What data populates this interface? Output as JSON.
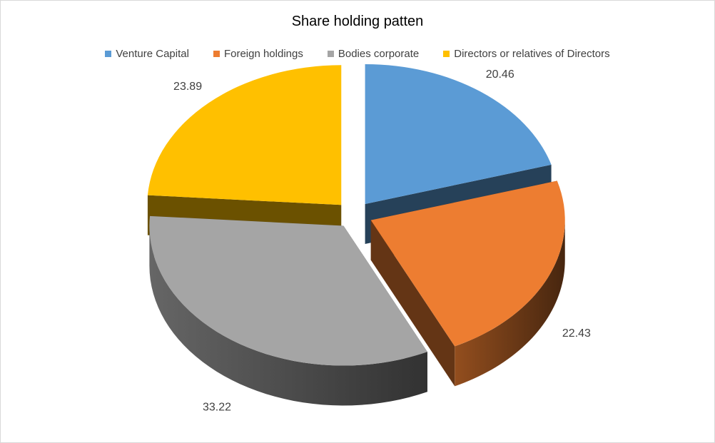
{
  "chart_data": {
    "type": "pie",
    "title": "Share holding patten",
    "three_d": true,
    "exploded": true,
    "legend_position": "top",
    "categories": [
      "Venture Capital",
      "Foreign holdings",
      "Bodies corporate",
      "Directors or relatives of Directors"
    ],
    "values": [
      20.46,
      22.43,
      33.22,
      23.89
    ],
    "colors": [
      "#5b9bd5",
      "#ed7d31",
      "#a5a5a5",
      "#ffc000"
    ]
  }
}
